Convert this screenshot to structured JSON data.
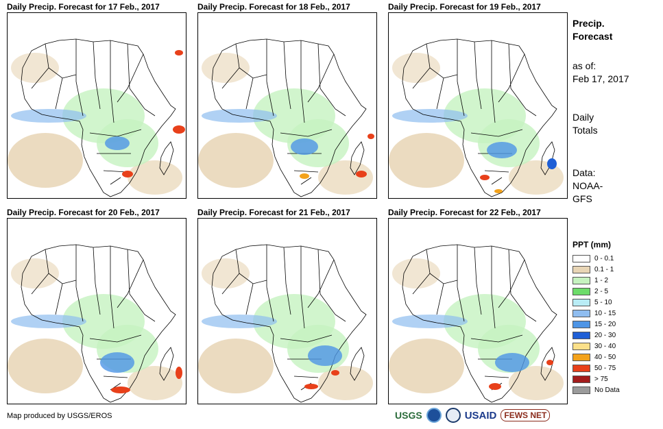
{
  "panels": [
    {
      "title": "Daily Precip. Forecast for 17 Feb., 2017"
    },
    {
      "title": "Daily Precip. Forecast for 18 Feb., 2017"
    },
    {
      "title": "Daily Precip. Forecast for 19 Feb., 2017"
    },
    {
      "title": "Daily Precip. Forecast for 20 Feb., 2017"
    },
    {
      "title": "Daily Precip. Forecast for 21 Feb., 2017"
    },
    {
      "title": "Daily Precip. Forecast for 22 Feb., 2017"
    }
  ],
  "sidebar": {
    "heading_line1": "Precip.",
    "heading_line2": "Forecast",
    "asof_label": "as of:",
    "asof_date": "Feb 17, 2017",
    "totals_line1": "Daily",
    "totals_line2": "Totals",
    "data_line1": "Data:",
    "data_line2": "NOAA-",
    "data_line3": "GFS"
  },
  "legend": {
    "title": "PPT (mm)",
    "items": [
      {
        "label": "0 - 0.1",
        "color": "#ffffff"
      },
      {
        "label": "0.1 - 1",
        "color": "#e8d5b5"
      },
      {
        "label": "1 - 2",
        "color": "#c6f2c0"
      },
      {
        "label": "2 - 5",
        "color": "#6ddc6a"
      },
      {
        "label": "5 - 10",
        "color": "#b9ecf5"
      },
      {
        "label": "10 - 15",
        "color": "#8fbdf0"
      },
      {
        "label": "15 - 20",
        "color": "#4e95e6"
      },
      {
        "label": "20 - 30",
        "color": "#1f5fd6"
      },
      {
        "label": "30 - 40",
        "color": "#fbe08a"
      },
      {
        "label": "40 - 50",
        "color": "#f3a21b"
      },
      {
        "label": "50 - 75",
        "color": "#e8401a"
      },
      {
        "label": "> 75",
        "color": "#a31c1c"
      },
      {
        "label": "No Data",
        "color": "#9b9b9b"
      }
    ]
  },
  "footer": {
    "credit": "Map produced by USGS/EROS",
    "logo_usgs": "USGS",
    "logo_usaid": "USAID",
    "logo_fews": "FEWS NET"
  }
}
